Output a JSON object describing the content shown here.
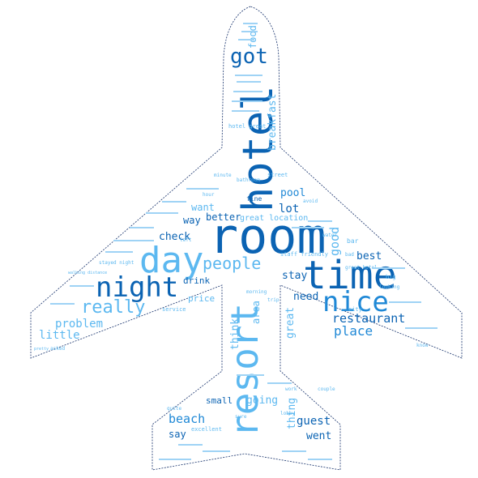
{
  "palette": {
    "blue_dark": "#0b63b3",
    "blue_mid": "#1f88d6",
    "blue_light": "#5cb8f0",
    "blue_pale": "#9fd3f5",
    "outline": "#16316b"
  },
  "shape": "airplane",
  "words": [
    {
      "text": "room",
      "color": "blue_dark"
    },
    {
      "text": "hotel",
      "color": "blue_dark"
    },
    {
      "text": "time",
      "color": "blue_dark"
    },
    {
      "text": "resort",
      "color": "blue_light"
    },
    {
      "text": "day",
      "color": "blue_light"
    },
    {
      "text": "night",
      "color": "blue_dark"
    },
    {
      "text": "nice",
      "color": "blue_mid"
    },
    {
      "text": "people",
      "color": "blue_light"
    },
    {
      "text": "really",
      "color": "blue_light"
    },
    {
      "text": "got",
      "color": "blue_dark"
    },
    {
      "text": "restaurant",
      "color": "blue_dark"
    },
    {
      "text": "place",
      "color": "blue_mid"
    },
    {
      "text": "beach",
      "color": "blue_mid"
    },
    {
      "text": "problem",
      "color": "blue_light"
    },
    {
      "text": "little",
      "color": "blue_light"
    },
    {
      "text": "check",
      "color": "blue_dark"
    },
    {
      "text": "good",
      "color": "blue_light"
    },
    {
      "text": "pool",
      "color": "blue_mid"
    },
    {
      "text": "lot",
      "color": "blue_dark"
    },
    {
      "text": "best",
      "color": "blue_dark"
    },
    {
      "text": "better",
      "color": "blue_dark"
    },
    {
      "text": "guest",
      "color": "blue_dark"
    },
    {
      "text": "went",
      "color": "blue_dark"
    },
    {
      "text": "going",
      "color": "blue_light"
    },
    {
      "text": "stay",
      "color": "blue_dark"
    },
    {
      "text": "need",
      "color": "blue_dark"
    },
    {
      "text": "thing",
      "color": "blue_light"
    },
    {
      "text": "breakfast",
      "color": "blue_light"
    },
    {
      "text": "food",
      "color": "blue_light"
    },
    {
      "text": "great",
      "color": "blue_light"
    },
    {
      "text": "think",
      "color": "blue_light"
    },
    {
      "text": "area",
      "color": "blue_light"
    },
    {
      "text": "want",
      "color": "blue_light"
    },
    {
      "text": "way",
      "color": "blue_dark"
    },
    {
      "text": "drink",
      "color": "blue_dark"
    },
    {
      "text": "say",
      "color": "blue_dark"
    },
    {
      "text": "small",
      "color": "blue_dark"
    },
    {
      "text": "price",
      "color": "blue_light"
    },
    {
      "text": "great location",
      "color": "blue_light"
    },
    {
      "text": "staff friendly",
      "color": "blue_light"
    },
    {
      "text": "service",
      "color": "blue_light"
    },
    {
      "text": "city",
      "color": "blue_light"
    },
    {
      "text": "bar",
      "color": "blue_light"
    },
    {
      "text": "fine",
      "color": "blue_dark"
    },
    {
      "text": "street",
      "color": "blue_light"
    },
    {
      "text": "excellent",
      "color": "blue_light"
    },
    {
      "text": "lobby",
      "color": "blue_light"
    },
    {
      "text": "hotel great",
      "color": "blue_light"
    },
    {
      "text": "couple",
      "color": "blue_light"
    },
    {
      "text": "water",
      "color": "blue_light"
    },
    {
      "text": "work",
      "color": "blue_light"
    },
    {
      "text": "big",
      "color": "blue_light"
    },
    {
      "text": "looking",
      "color": "blue_light"
    },
    {
      "text": "morning",
      "color": "blue_light"
    },
    {
      "text": "trip",
      "color": "blue_light"
    },
    {
      "text": "know",
      "color": "blue_light"
    },
    {
      "text": "pretty",
      "color": "blue_light"
    },
    {
      "text": "asked",
      "color": "blue_light"
    },
    {
      "text": "bathroom",
      "color": "blue_light"
    },
    {
      "text": "minute",
      "color": "blue_light"
    },
    {
      "text": "hour",
      "color": "blue_light"
    },
    {
      "text": "avoid",
      "color": "blue_light"
    },
    {
      "text": "bad",
      "color": "blue_light"
    },
    {
      "text": "great hotel",
      "color": "blue_light"
    },
    {
      "text": "stayed night",
      "color": "blue_light"
    },
    {
      "text": "left",
      "color": "blue_light"
    },
    {
      "text": "quite",
      "color": "blue_light"
    },
    {
      "text": "sure",
      "color": "blue_light"
    },
    {
      "text": "walking distance",
      "color": "blue_light"
    }
  ]
}
